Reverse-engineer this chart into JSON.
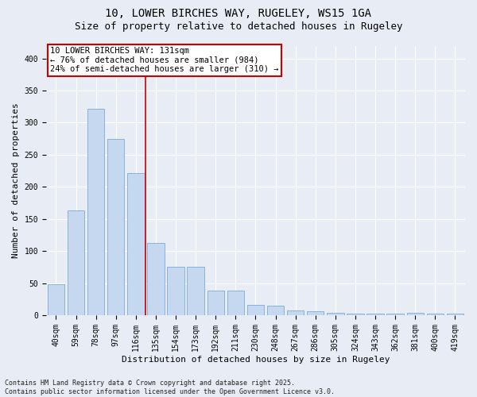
{
  "title": "10, LOWER BIRCHES WAY, RUGELEY, WS15 1GA",
  "subtitle": "Size of property relative to detached houses in Rugeley",
  "xlabel": "Distribution of detached houses by size in Rugeley",
  "ylabel": "Number of detached properties",
  "categories": [
    "40sqm",
    "59sqm",
    "78sqm",
    "97sqm",
    "116sqm",
    "135sqm",
    "154sqm",
    "173sqm",
    "192sqm",
    "211sqm",
    "230sqm",
    "248sqm",
    "267sqm",
    "286sqm",
    "305sqm",
    "324sqm",
    "343sqm",
    "362sqm",
    "381sqm",
    "400sqm",
    "419sqm"
  ],
  "values": [
    48,
    163,
    322,
    275,
    222,
    113,
    75,
    75,
    38,
    38,
    16,
    15,
    8,
    6,
    4,
    3,
    3,
    3,
    4,
    3,
    2
  ],
  "bar_color": "#c5d8f0",
  "bar_edge_color": "#7bacd4",
  "vline_index": 5,
  "annotation_text": "10 LOWER BIRCHES WAY: 131sqm\n← 76% of detached houses are smaller (984)\n24% of semi-detached houses are larger (310) →",
  "annotation_box_color": "#ffffff",
  "annotation_box_edge_color": "#cc0000",
  "vline_color": "#cc0000",
  "background_color": "#e8edf5",
  "grid_color": "#ffffff",
  "ylim": [
    0,
    420
  ],
  "yticks": [
    0,
    50,
    100,
    150,
    200,
    250,
    300,
    350,
    400
  ],
  "footnote": "Contains HM Land Registry data © Crown copyright and database right 2025.\nContains public sector information licensed under the Open Government Licence v3.0.",
  "title_fontsize": 10,
  "subtitle_fontsize": 9,
  "xlabel_fontsize": 8,
  "ylabel_fontsize": 8,
  "tick_fontsize": 7,
  "annotation_fontsize": 7.5,
  "footnote_fontsize": 6
}
